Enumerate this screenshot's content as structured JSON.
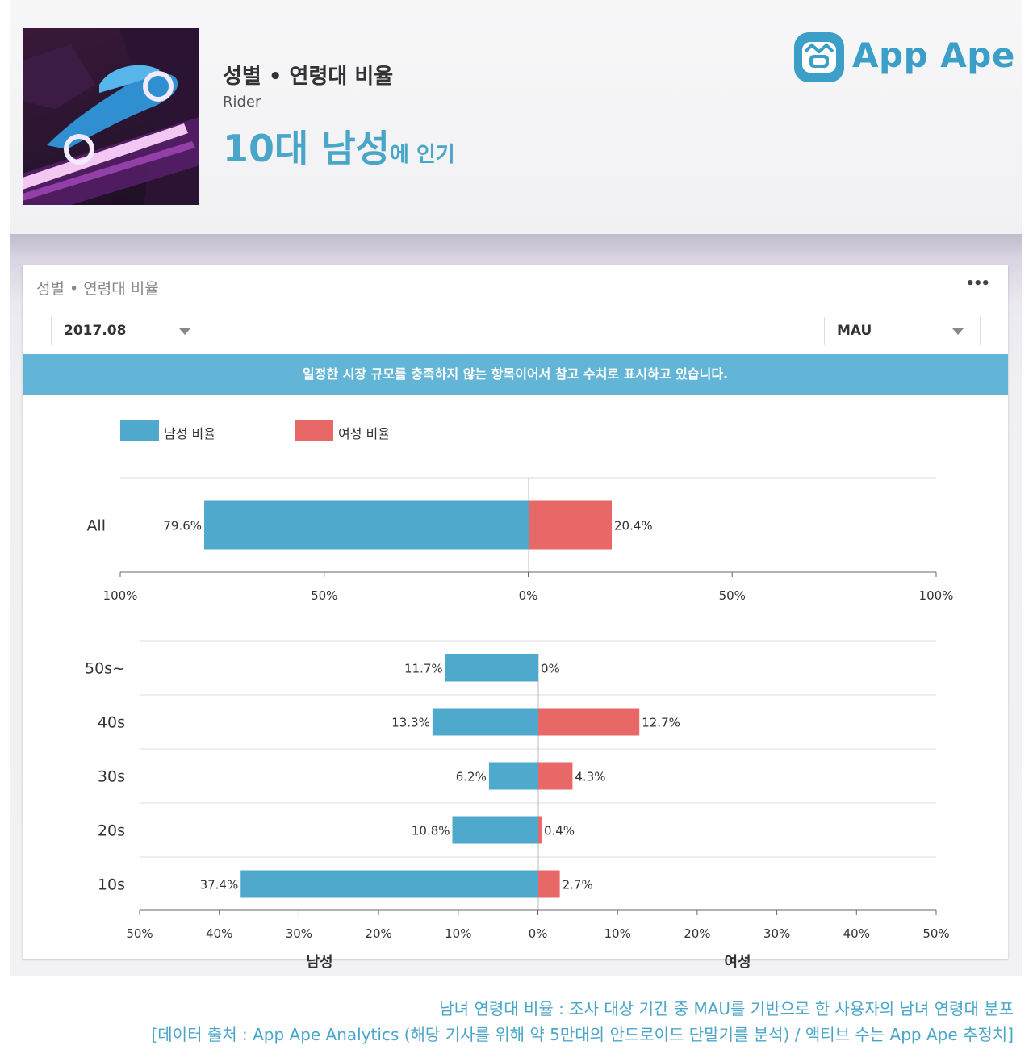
{
  "header": {
    "title": "성별 • 연령대 비율",
    "app_name": "Rider",
    "popularity_big": "10대 남성",
    "popularity_small": "에 인기",
    "logo_text": "App Ape"
  },
  "card": {
    "title": "성별 • 연령대 비율",
    "menu": "•••",
    "period": "2017.08",
    "metric": "MAU",
    "notice": "일정한 시장 규모를 충족하지 않는 항목이어서 참고 수치로 표시하고 있습니다."
  },
  "colors": {
    "male": "#4fa9cc",
    "female": "#e86868",
    "accent": "#4aa6c8"
  },
  "chart_data": [
    {
      "type": "bar",
      "orientation": "horizontal-diverging",
      "categories": [
        "All"
      ],
      "series": [
        {
          "name": "남성 비율",
          "values": [
            79.6
          ],
          "labels": [
            "79.6%"
          ]
        },
        {
          "name": "여성 비율",
          "values": [
            20.4
          ],
          "labels": [
            "20.4%"
          ]
        }
      ],
      "xlim": [
        -100,
        100
      ],
      "ticks": [
        "100%",
        "50%",
        "0%",
        "50%",
        "100%"
      ],
      "legend": "top-left"
    },
    {
      "type": "bar",
      "orientation": "horizontal-diverging",
      "categories": [
        "50s~",
        "40s",
        "30s",
        "20s",
        "10s"
      ],
      "series": [
        {
          "name": "남성 비율",
          "values": [
            11.7,
            13.3,
            6.2,
            10.8,
            37.4
          ],
          "labels": [
            "11.7%",
            "13.3%",
            "6.2%",
            "10.8%",
            "37.4%"
          ]
        },
        {
          "name": "여성 비율",
          "values": [
            0,
            12.7,
            4.3,
            0.4,
            2.7
          ],
          "labels": [
            "0%",
            "12.7%",
            "4.3%",
            "0.4%",
            "2.7%"
          ]
        }
      ],
      "xlim": [
        -50,
        50
      ],
      "ticks": [
        "50%",
        "40%",
        "30%",
        "20%",
        "10%",
        "0%",
        "10%",
        "20%",
        "30%",
        "40%",
        "50%"
      ],
      "xlabel_left": "남성",
      "xlabel_right": "여성"
    }
  ],
  "footer": {
    "line1": "남녀 연령대 비율 : 조사 대상 기간 중 MAU를 기반으로 한 사용자의 남녀 연령대 분포",
    "line2": "[데이터 출처 : App Ape Analytics (해당 기사를 위해 약 5만대의 안드로이드 단말기를 분석) / 액티브 수는 App Ape 추정치]"
  }
}
